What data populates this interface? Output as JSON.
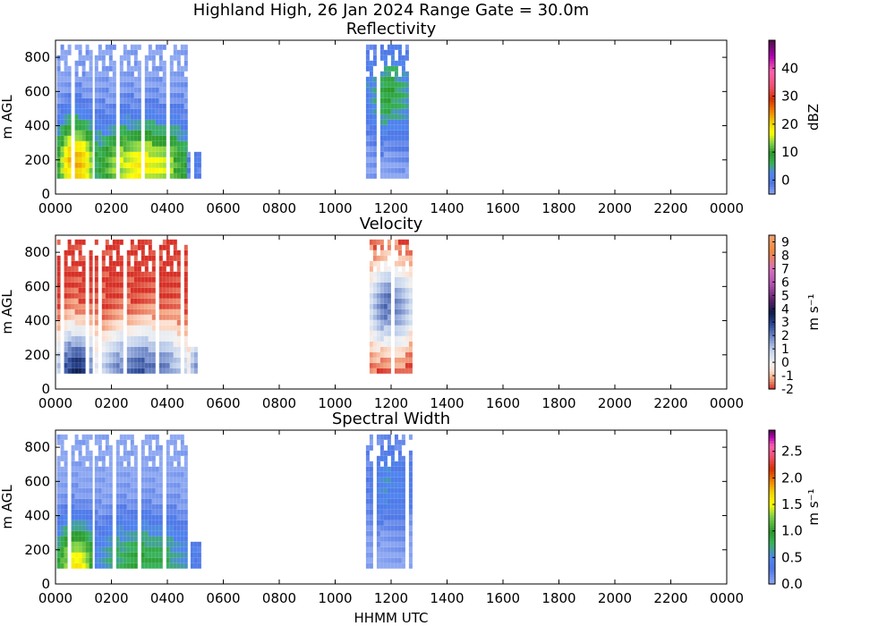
{
  "figure_title": "Highland High, 26 Jan 2024 Range Gate = 30.0m",
  "xlabel": "HHMM UTC",
  "x_ticks": [
    "0000",
    "0200",
    "0400",
    "0600",
    "0800",
    "1000",
    "1200",
    "1400",
    "1600",
    "1800",
    "2000",
    "2200",
    "0000"
  ],
  "chart_data": [
    {
      "type": "heatmap",
      "title": "Reflectivity",
      "ylabel": "m AGL",
      "xlim_hours": [
        0,
        24
      ],
      "ylim": [
        0,
        900
      ],
      "y_ticks": [
        0,
        200,
        400,
        600,
        800
      ],
      "colorbar": {
        "label": "dBZ",
        "range": [
          -5,
          50
        ],
        "ticks": [
          0,
          10,
          20,
          30,
          40
        ],
        "tick_labels": [
          "0",
          "10",
          "20",
          "30",
          "40"
        ]
      },
      "echo_segments": [
        {
          "x_start": 0.05,
          "x_end": 1.3,
          "y_bottom": 90,
          "y_top": 900,
          "peak": 23,
          "core_height": 200
        },
        {
          "x_start": 1.4,
          "x_end": 4.7,
          "y_bottom": 90,
          "y_top": 900,
          "peak": 18,
          "core_height": 180
        },
        {
          "x_start": 4.7,
          "x_end": 5.2,
          "y_bottom": 90,
          "y_top": 250,
          "peak": 0,
          "core_height": 150
        },
        {
          "x_start": 11.1,
          "x_end": 12.7,
          "y_bottom": 90,
          "y_top": 900,
          "peak": 8,
          "core_height": 600
        }
      ]
    },
    {
      "type": "heatmap",
      "title": "Velocity",
      "ylabel": "m AGL",
      "xlim_hours": [
        0,
        24
      ],
      "ylim": [
        0,
        900
      ],
      "y_ticks": [
        0,
        200,
        400,
        600,
        800
      ],
      "colorbar": {
        "label": "m s⁻¹",
        "range": [
          -2,
          9.5
        ],
        "ticks": [
          -2,
          -1,
          0,
          1,
          2,
          3,
          4,
          5,
          6,
          7,
          8,
          9
        ],
        "tick_labels": [
          "-2",
          "-1",
          "0",
          "1",
          "2",
          "3",
          "4",
          "5",
          "6",
          "7",
          "8",
          "9"
        ]
      },
      "echo_segments": [
        {
          "x_start": 0.05,
          "x_end": 1.3,
          "y_bottom": 90,
          "y_top": 900,
          "peak": 3.5,
          "core_height": 120
        },
        {
          "x_start": 1.4,
          "x_end": 4.7,
          "y_bottom": 90,
          "y_top": 900,
          "peak": 2.5,
          "core_height": 120
        },
        {
          "x_start": 4.7,
          "x_end": 5.2,
          "y_bottom": 90,
          "y_top": 250,
          "peak": 1.5,
          "core_height": 120
        },
        {
          "x_start": 11.1,
          "x_end": 12.7,
          "y_bottom": 90,
          "y_top": 900,
          "peak": 2.2,
          "core_height": 500
        }
      ]
    },
    {
      "type": "heatmap",
      "title": "Spectral Width",
      "ylabel": "m AGL",
      "xlim_hours": [
        0,
        24
      ],
      "ylim": [
        0,
        900
      ],
      "y_ticks": [
        0,
        200,
        400,
        600,
        800
      ],
      "colorbar": {
        "label": "m s⁻¹",
        "range": [
          0,
          2.9
        ],
        "ticks": [
          0.0,
          0.5,
          1.0,
          1.5,
          2.0,
          2.5
        ],
        "tick_labels": [
          "0.0",
          "0.5",
          "1.0",
          "1.5",
          "2.0",
          "2.5"
        ]
      },
      "echo_segments": [
        {
          "x_start": 0.05,
          "x_end": 1.3,
          "y_bottom": 90,
          "y_top": 900,
          "peak": 1.6,
          "core_height": 120
        },
        {
          "x_start": 1.4,
          "x_end": 4.7,
          "y_bottom": 90,
          "y_top": 900,
          "peak": 0.9,
          "core_height": 150
        },
        {
          "x_start": 4.7,
          "x_end": 5.2,
          "y_bottom": 90,
          "y_top": 250,
          "peak": 0.4,
          "core_height": 150
        },
        {
          "x_start": 11.1,
          "x_end": 12.7,
          "y_bottom": 90,
          "y_top": 900,
          "peak": 0.5,
          "core_height": 600
        }
      ]
    }
  ]
}
